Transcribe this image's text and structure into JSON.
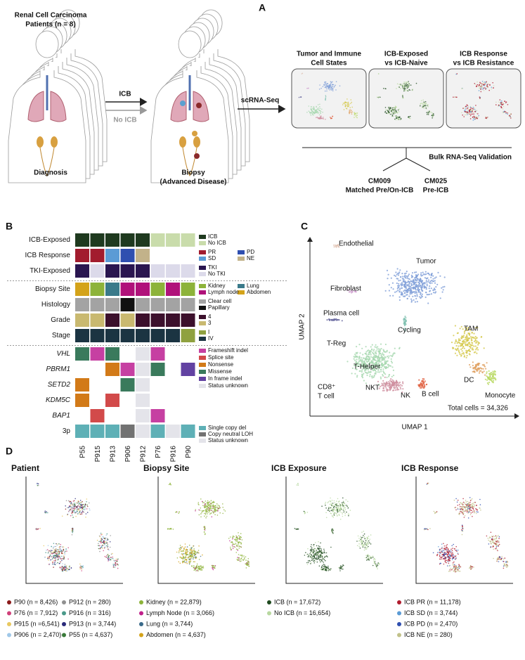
{
  "panel_a": {
    "label": "A",
    "cohort": [
      "Renal Cell Carcinoma",
      "Patients (n = 8)"
    ],
    "diagnosis": "Diagnosis",
    "icb": "ICB",
    "no_icb": "No ICB",
    "biopsy": [
      "Biopsy",
      "(Advanced Disease)"
    ],
    "method": "scRNA-Seq",
    "analyses": [
      [
        "Tumor and Immune",
        "Cell States"
      ],
      [
        "ICB-Exposed",
        "vs ICB-Naive"
      ],
      [
        "ICB Response",
        "vs ICB Resistance"
      ]
    ],
    "validation": "Bulk RNA-Seq Validation",
    "cohorts": [
      {
        "name": "CM009",
        "desc": "Matched Pre/On-ICB"
      },
      {
        "name": "CM025",
        "desc": "Pre-ICB"
      }
    ]
  },
  "panel_b": {
    "label": "B",
    "patients": [
      "P55",
      "P915",
      "P913",
      "P906",
      "P912",
      "P76",
      "P916",
      "P90"
    ],
    "groups": [
      {
        "rows": [
          {
            "label": "ICB-Exposed",
            "italic": false,
            "colors": [
              "#1f3a1f",
              "#1f3a1f",
              "#1f3a1f",
              "#1f3a1f",
              "#1f3a1f",
              "#c9dcab",
              "#c9dcab",
              "#c9dcab"
            ],
            "legend": [
              {
                "label": "ICB",
                "color": "#1f3a1f"
              },
              {
                "label": "No ICB",
                "color": "#c9dcab"
              }
            ]
          },
          {
            "label": "ICB Response",
            "italic": false,
            "colors": [
              "#a21c2e",
              "#a21c2e",
              "#5b9bd5",
              "#2f4fb0",
              "#c2b28a",
              "#ffffff",
              "#ffffff",
              "#ffffff"
            ],
            "legend": [
              {
                "label": "PR",
                "color": "#a21c2e"
              },
              {
                "label": "SD",
                "color": "#5b9bd5"
              },
              {
                "label": "PD",
                "color": "#2f4fb0"
              },
              {
                "label": "NE",
                "color": "#c2b28a"
              }
            ]
          },
          {
            "label": "TKI-Exposed",
            "italic": false,
            "colors": [
              "#2a1650",
              "#dcdaea",
              "#2a1650",
              "#2a1650",
              "#2a1650",
              "#dcdaea",
              "#dcdaea",
              "#dcdaea"
            ],
            "legend": [
              {
                "label": "TKI",
                "color": "#2a1650"
              },
              {
                "label": "No TKI",
                "color": "#dcdaea"
              }
            ]
          }
        ]
      },
      {
        "rows": [
          {
            "label": "Biopsy Site",
            "italic": false,
            "colors": [
              "#d4a31a",
              "#8db33a",
              "#3a7a8a",
              "#b0127a",
              "#b0127a",
              "#8db33a",
              "#b0127a",
              "#8db33a"
            ],
            "legend": [
              {
                "label": "Kidney",
                "color": "#8db33a"
              },
              {
                "label": "Lymph node",
                "color": "#b0127a"
              },
              {
                "label": "Lung",
                "color": "#3a7a8a"
              },
              {
                "label": "Abdomen",
                "color": "#d4a31a"
              }
            ]
          },
          {
            "label": "Histology",
            "italic": false,
            "colors": [
              "#a3a3a3",
              "#a3a3a3",
              "#a3a3a3",
              "#111111",
              "#a3a3a3",
              "#a3a3a3",
              "#a3a3a3",
              "#a3a3a3"
            ],
            "legend": [
              {
                "label": "Clear cell",
                "color": "#a3a3a3"
              },
              {
                "label": "Papillary",
                "color": "#111111"
              }
            ]
          },
          {
            "label": "Grade",
            "italic": false,
            "colors": [
              "#c9b970",
              "#c9b970",
              "#3c102c",
              "#c9b970",
              "#3c102c",
              "#3c102c",
              "#3c102c",
              "#3c102c"
            ],
            "legend": [
              {
                "label": "4",
                "color": "#3c102c"
              },
              {
                "label": "3",
                "color": "#c9b970"
              }
            ]
          },
          {
            "label": "Stage",
            "italic": false,
            "colors": [
              "#1b3442",
              "#1b3442",
              "#1b3442",
              "#1b3442",
              "#1b3442",
              "#1b3442",
              "#1b3442",
              "#8fa140"
            ],
            "legend": [
              {
                "label": "I",
                "color": "#8fa140"
              },
              {
                "label": "IV",
                "color": "#1b3442"
              }
            ]
          }
        ]
      },
      {
        "legend": [
          {
            "label": "Frameshift indel",
            "color": "#c640a2"
          },
          {
            "label": "Splice site",
            "color": "#d24a4a"
          },
          {
            "label": "Nonsense",
            "color": "#d27a18"
          },
          {
            "label": "Missense",
            "color": "#3a7a5c"
          },
          {
            "label": "In frame indel",
            "color": "#6242a2"
          },
          {
            "label": "Status unknown",
            "color": "#e4e4ea"
          }
        ],
        "rows": [
          {
            "label": "VHL",
            "italic": true,
            "colors": [
              "#3a7a5c",
              "#c640a2",
              "#3a7a5c",
              "#ffffff",
              "#e4e4ea",
              "#c640a2",
              "#ffffff",
              "#ffffff"
            ]
          },
          {
            "label": "PBRM1",
            "italic": true,
            "colors": [
              "#ffffff",
              "#ffffff",
              "#d27a18",
              "#c640a2",
              "#e4e4ea",
              "#3a7a5c",
              "#ffffff",
              "#6242a2"
            ]
          },
          {
            "label": "SETD2",
            "italic": true,
            "colors": [
              "#d27a18",
              "#ffffff",
              "#ffffff",
              "#3a7a5c",
              "#e4e4ea",
              "#ffffff",
              "#ffffff",
              "#ffffff"
            ]
          },
          {
            "label": "KDM5C",
            "italic": true,
            "colors": [
              "#d27a18",
              "#ffffff",
              "#d24a4a",
              "#ffffff",
              "#e4e4ea",
              "#ffffff",
              "#ffffff",
              "#ffffff"
            ]
          },
          {
            "label": "BAP1",
            "italic": true,
            "colors": [
              "#ffffff",
              "#d24a4a",
              "#ffffff",
              "#ffffff",
              "#e4e4ea",
              "#c640a2",
              "#ffffff",
              "#ffffff"
            ]
          },
          {
            "label": "3p",
            "italic": false,
            "colors": [
              "#5eb0b6",
              "#5eb0b6",
              "#5eb0b6",
              "#727272",
              "#e4e4ea",
              "#5eb0b6",
              "#e4e4ea",
              "#5eb0b6"
            ],
            "legend": [
              {
                "label": "Single copy del",
                "color": "#5eb0b6"
              },
              {
                "label": "Copy neutral LOH",
                "color": "#727272"
              },
              {
                "label": "Status unknown",
                "color": "#e4e4ea"
              }
            ]
          }
        ]
      }
    ]
  },
  "panel_c": {
    "label": "C",
    "x_label": "UMAP 1",
    "y_label": "UMAP 2",
    "total": "Total cells = 34,326",
    "clusters": [
      "Endothelial",
      "Tumor",
      "Fibroblast",
      "Plasma cell",
      "Cycling",
      "TAM",
      "T-Reg",
      "T-Helper",
      "DC",
      "B cell",
      "CD8⁺",
      "T cell",
      "NKT",
      "NK",
      "Monocyte"
    ]
  },
  "panel_d": {
    "label": "D",
    "panels": [
      {
        "title": "Patient",
        "legend": [
          {
            "label": "P90 (n = 8,426)",
            "color": "#8b1a1a"
          },
          {
            "label": "P76 (n = 7,912)",
            "color": "#d0407a"
          },
          {
            "label": "P915 (n =6,541)",
            "color": "#e8c860"
          },
          {
            "label": "P906 (n = 2,470)",
            "color": "#a0c8e8"
          },
          {
            "label": "P912 (n = 280)",
            "color": "#909090"
          },
          {
            "label": "P916 (n = 316)",
            "color": "#4a9a8a"
          },
          {
            "label": "P913 (n = 3,744)",
            "color": "#2a2a7a"
          },
          {
            "label": "P55 (n = 4,637)",
            "color": "#3a7a3a"
          }
        ]
      },
      {
        "title": "Biopsy Site",
        "legend": [
          {
            "label": "Kidney (n = 22,879)",
            "color": "#8db33a"
          },
          {
            "label": "Lymph Node (n = 3,066)",
            "color": "#c0208a"
          },
          {
            "label": "Lung (n = 3,744)",
            "color": "#3a6a8a"
          },
          {
            "label": "Abdomen (n = 4,637)",
            "color": "#d4a31a"
          }
        ]
      },
      {
        "title": "ICB Exposure",
        "legend": [
          {
            "label": "ICB (n = 17,672)",
            "color": "#1f4a1f"
          },
          {
            "label": "No ICB (n = 16,654)",
            "color": "#b8d8a0"
          }
        ]
      },
      {
        "title": "ICB Response",
        "legend": [
          {
            "label": "ICB PR (n = 11,178)",
            "color": "#b01c2e"
          },
          {
            "label": "ICB SD (n = 3,744)",
            "color": "#5b9bd5"
          },
          {
            "label": "ICB PD (n = 2,470)",
            "color": "#2f4fb0"
          },
          {
            "label": "ICB NE (n = 280)",
            "color": "#c2c28a"
          }
        ]
      }
    ]
  }
}
